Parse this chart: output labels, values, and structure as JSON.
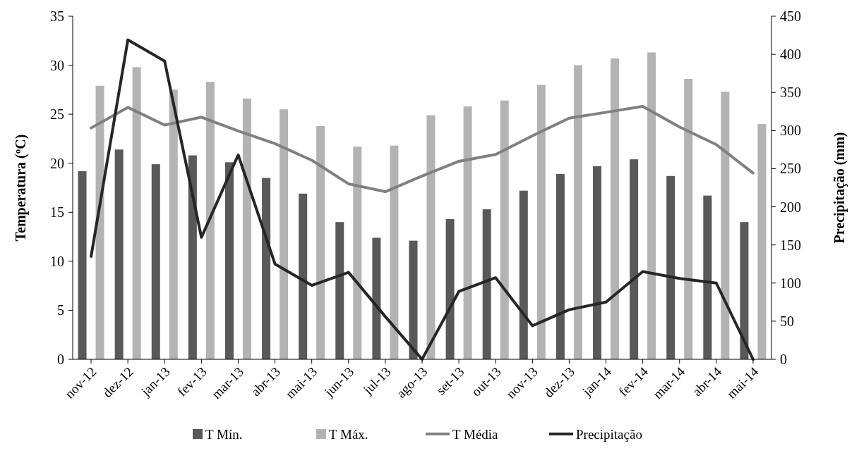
{
  "chart_data": {
    "type": "bar",
    "ylabel": "Temperatura (ºC)",
    "y2label": "Precipitação (mm)",
    "categories": [
      "nov-12",
      "dez-12",
      "jan-13",
      "fev-13",
      "mar-13",
      "abr-13",
      "mai-13",
      "jun-13",
      "jul-13",
      "ago-13",
      "set-13",
      "out-13",
      "nov-13",
      "dez-13",
      "jan-14",
      "fev-14",
      "mar-14",
      "abr-14",
      "mai-14"
    ],
    "series": [
      {
        "name": "T Mín.",
        "color": "#595959",
        "values": [
          19.2,
          21.4,
          19.9,
          20.8,
          20.1,
          18.5,
          16.9,
          14.0,
          12.4,
          12.1,
          14.3,
          15.3,
          17.2,
          18.9,
          19.7,
          20.4,
          18.7,
          16.7,
          14.0
        ]
      },
      {
        "name": "T Máx.",
        "color": "#b3b3b3",
        "values": [
          27.9,
          29.8,
          27.5,
          28.3,
          26.6,
          25.5,
          23.8,
          21.7,
          21.8,
          24.9,
          25.8,
          26.4,
          28.0,
          30.0,
          30.7,
          31.3,
          28.6,
          27.3,
          24.0
        ]
      },
      {
        "name": "T Média",
        "type": "line",
        "color": "#808080",
        "values": [
          23.6,
          25.7,
          23.9,
          24.7,
          23.3,
          22.0,
          20.3,
          17.9,
          17.1,
          18.7,
          20.2,
          20.9,
          22.8,
          24.6,
          25.2,
          25.8,
          23.7,
          21.9,
          19.0
        ]
      },
      {
        "name": "Precipitação",
        "type": "line",
        "axis": "y2",
        "color": "#262626",
        "values": [
          135,
          419,
          391,
          160,
          268,
          125,
          97,
          114,
          56,
          0,
          89,
          107,
          44,
          65,
          75,
          115,
          106,
          100,
          0
        ]
      }
    ],
    "ylim": [
      0,
      35
    ],
    "yticks": [
      0,
      5,
      10,
      15,
      20,
      25,
      30,
      35
    ],
    "y2lim": [
      0,
      450
    ],
    "y2ticks": [
      0,
      50,
      100,
      150,
      200,
      250,
      300,
      350,
      400,
      450
    ],
    "grid": false,
    "legend": "bottom",
    "marker": "none",
    "line_style": "solid"
  }
}
